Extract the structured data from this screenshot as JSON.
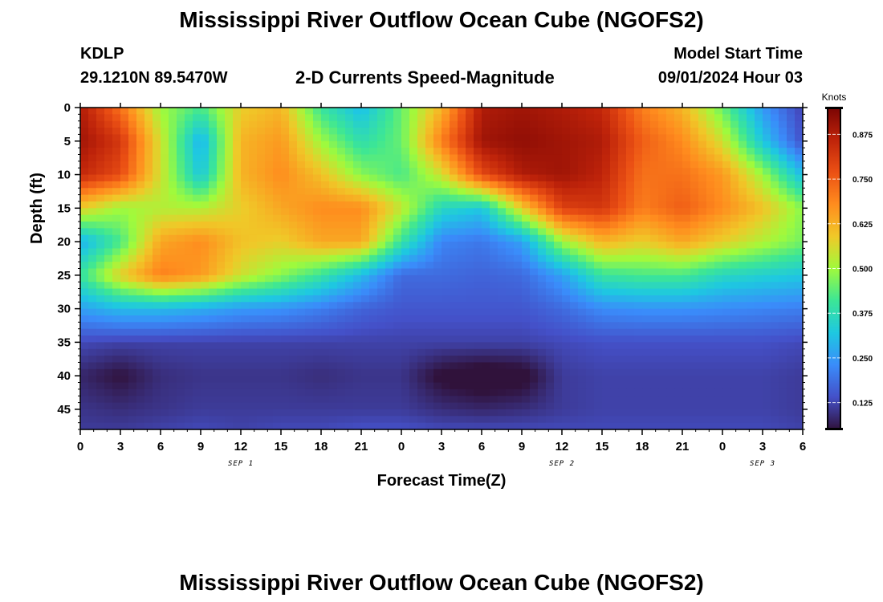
{
  "header": {
    "title": "Mississippi River Outflow Ocean Cube (NGOFS2)",
    "station": "KDLP",
    "coords": "29.1210N  89.5470W",
    "subtitle": "2-D Currents Speed-Magnitude",
    "model_label": "Model Start Time",
    "model_time": "09/01/2024 Hour 03",
    "footer_title": "Mississippi River Outflow Ocean Cube (NGOFS2)"
  },
  "chart_data": {
    "type": "heatmap",
    "title": "2-D Currents Speed-Magnitude",
    "xlabel": "Forecast Time(Z)",
    "ylabel": "Depth (ft)",
    "x_ticks": [
      "0",
      "3",
      "6",
      "9",
      "12",
      "15",
      "18",
      "21",
      "0",
      "3",
      "6",
      "9",
      "12",
      "15",
      "18",
      "21",
      "0",
      "3",
      "6"
    ],
    "x_range_hours": [
      0,
      54
    ],
    "date_labels": [
      {
        "label": "SEP 1",
        "hour": 12
      },
      {
        "label": "SEP 2",
        "hour": 36
      },
      {
        "label": "SEP 3",
        "hour": 51
      }
    ],
    "y_ticks": [
      "0",
      "5",
      "10",
      "15",
      "20",
      "25",
      "30",
      "35",
      "40",
      "45"
    ],
    "y_range_ft": [
      0,
      48
    ],
    "y_inverted": true,
    "colorbar": {
      "label": "Knots",
      "range": [
        0.05,
        0.95
      ],
      "ticks": [
        "0.875",
        "0.750",
        "0.625",
        "0.500",
        "0.375",
        "0.250",
        "0.125"
      ],
      "colormap": "turbo"
    },
    "grid_hours": [
      0,
      3,
      6,
      9,
      12,
      15,
      18,
      21,
      24,
      27,
      30,
      33,
      36,
      39,
      42,
      45,
      48,
      51,
      54
    ],
    "grid_depths_ft": [
      0,
      5,
      10,
      15,
      20,
      25,
      30,
      35,
      40,
      45,
      48
    ],
    "speed_knots": [
      [
        0.88,
        0.72,
        0.5,
        0.42,
        0.58,
        0.62,
        0.4,
        0.3,
        0.45,
        0.62,
        0.88,
        0.9,
        0.88,
        0.85,
        0.7,
        0.62,
        0.45,
        0.25,
        0.12
      ],
      [
        0.9,
        0.82,
        0.55,
        0.28,
        0.62,
        0.66,
        0.5,
        0.38,
        0.45,
        0.7,
        0.9,
        0.92,
        0.9,
        0.88,
        0.75,
        0.68,
        0.55,
        0.32,
        0.14
      ],
      [
        0.85,
        0.78,
        0.55,
        0.32,
        0.62,
        0.68,
        0.6,
        0.48,
        0.42,
        0.55,
        0.78,
        0.88,
        0.9,
        0.86,
        0.72,
        0.72,
        0.66,
        0.5,
        0.3
      ],
      [
        0.58,
        0.5,
        0.52,
        0.52,
        0.58,
        0.64,
        0.68,
        0.68,
        0.54,
        0.36,
        0.32,
        0.58,
        0.8,
        0.82,
        0.7,
        0.75,
        0.68,
        0.6,
        0.48
      ],
      [
        0.28,
        0.42,
        0.64,
        0.68,
        0.6,
        0.58,
        0.64,
        0.64,
        0.4,
        0.22,
        0.2,
        0.26,
        0.5,
        0.62,
        0.58,
        0.64,
        0.58,
        0.52,
        0.46
      ],
      [
        0.4,
        0.58,
        0.7,
        0.66,
        0.55,
        0.48,
        0.4,
        0.3,
        0.18,
        0.18,
        0.17,
        0.18,
        0.26,
        0.4,
        0.42,
        0.42,
        0.36,
        0.34,
        0.32
      ],
      [
        0.26,
        0.3,
        0.3,
        0.28,
        0.25,
        0.24,
        0.21,
        0.17,
        0.15,
        0.15,
        0.15,
        0.15,
        0.18,
        0.23,
        0.24,
        0.24,
        0.23,
        0.22,
        0.21
      ],
      [
        0.13,
        0.12,
        0.12,
        0.12,
        0.12,
        0.12,
        0.12,
        0.12,
        0.12,
        0.12,
        0.12,
        0.12,
        0.13,
        0.14,
        0.14,
        0.14,
        0.14,
        0.14,
        0.13
      ],
      [
        0.08,
        0.05,
        0.09,
        0.1,
        0.1,
        0.1,
        0.09,
        0.1,
        0.1,
        0.04,
        0.02,
        0.03,
        0.11,
        0.12,
        0.12,
        0.12,
        0.12,
        0.12,
        0.11
      ],
      [
        0.1,
        0.09,
        0.1,
        0.11,
        0.11,
        0.11,
        0.11,
        0.11,
        0.11,
        0.09,
        0.08,
        0.09,
        0.11,
        0.12,
        0.12,
        0.12,
        0.12,
        0.12,
        0.11
      ],
      [
        0.11,
        0.11,
        0.12,
        0.13,
        0.12,
        0.13,
        0.13,
        0.14,
        0.14,
        0.13,
        0.13,
        0.13,
        0.13,
        0.13,
        0.13,
        0.13,
        0.13,
        0.13,
        0.12
      ]
    ]
  }
}
